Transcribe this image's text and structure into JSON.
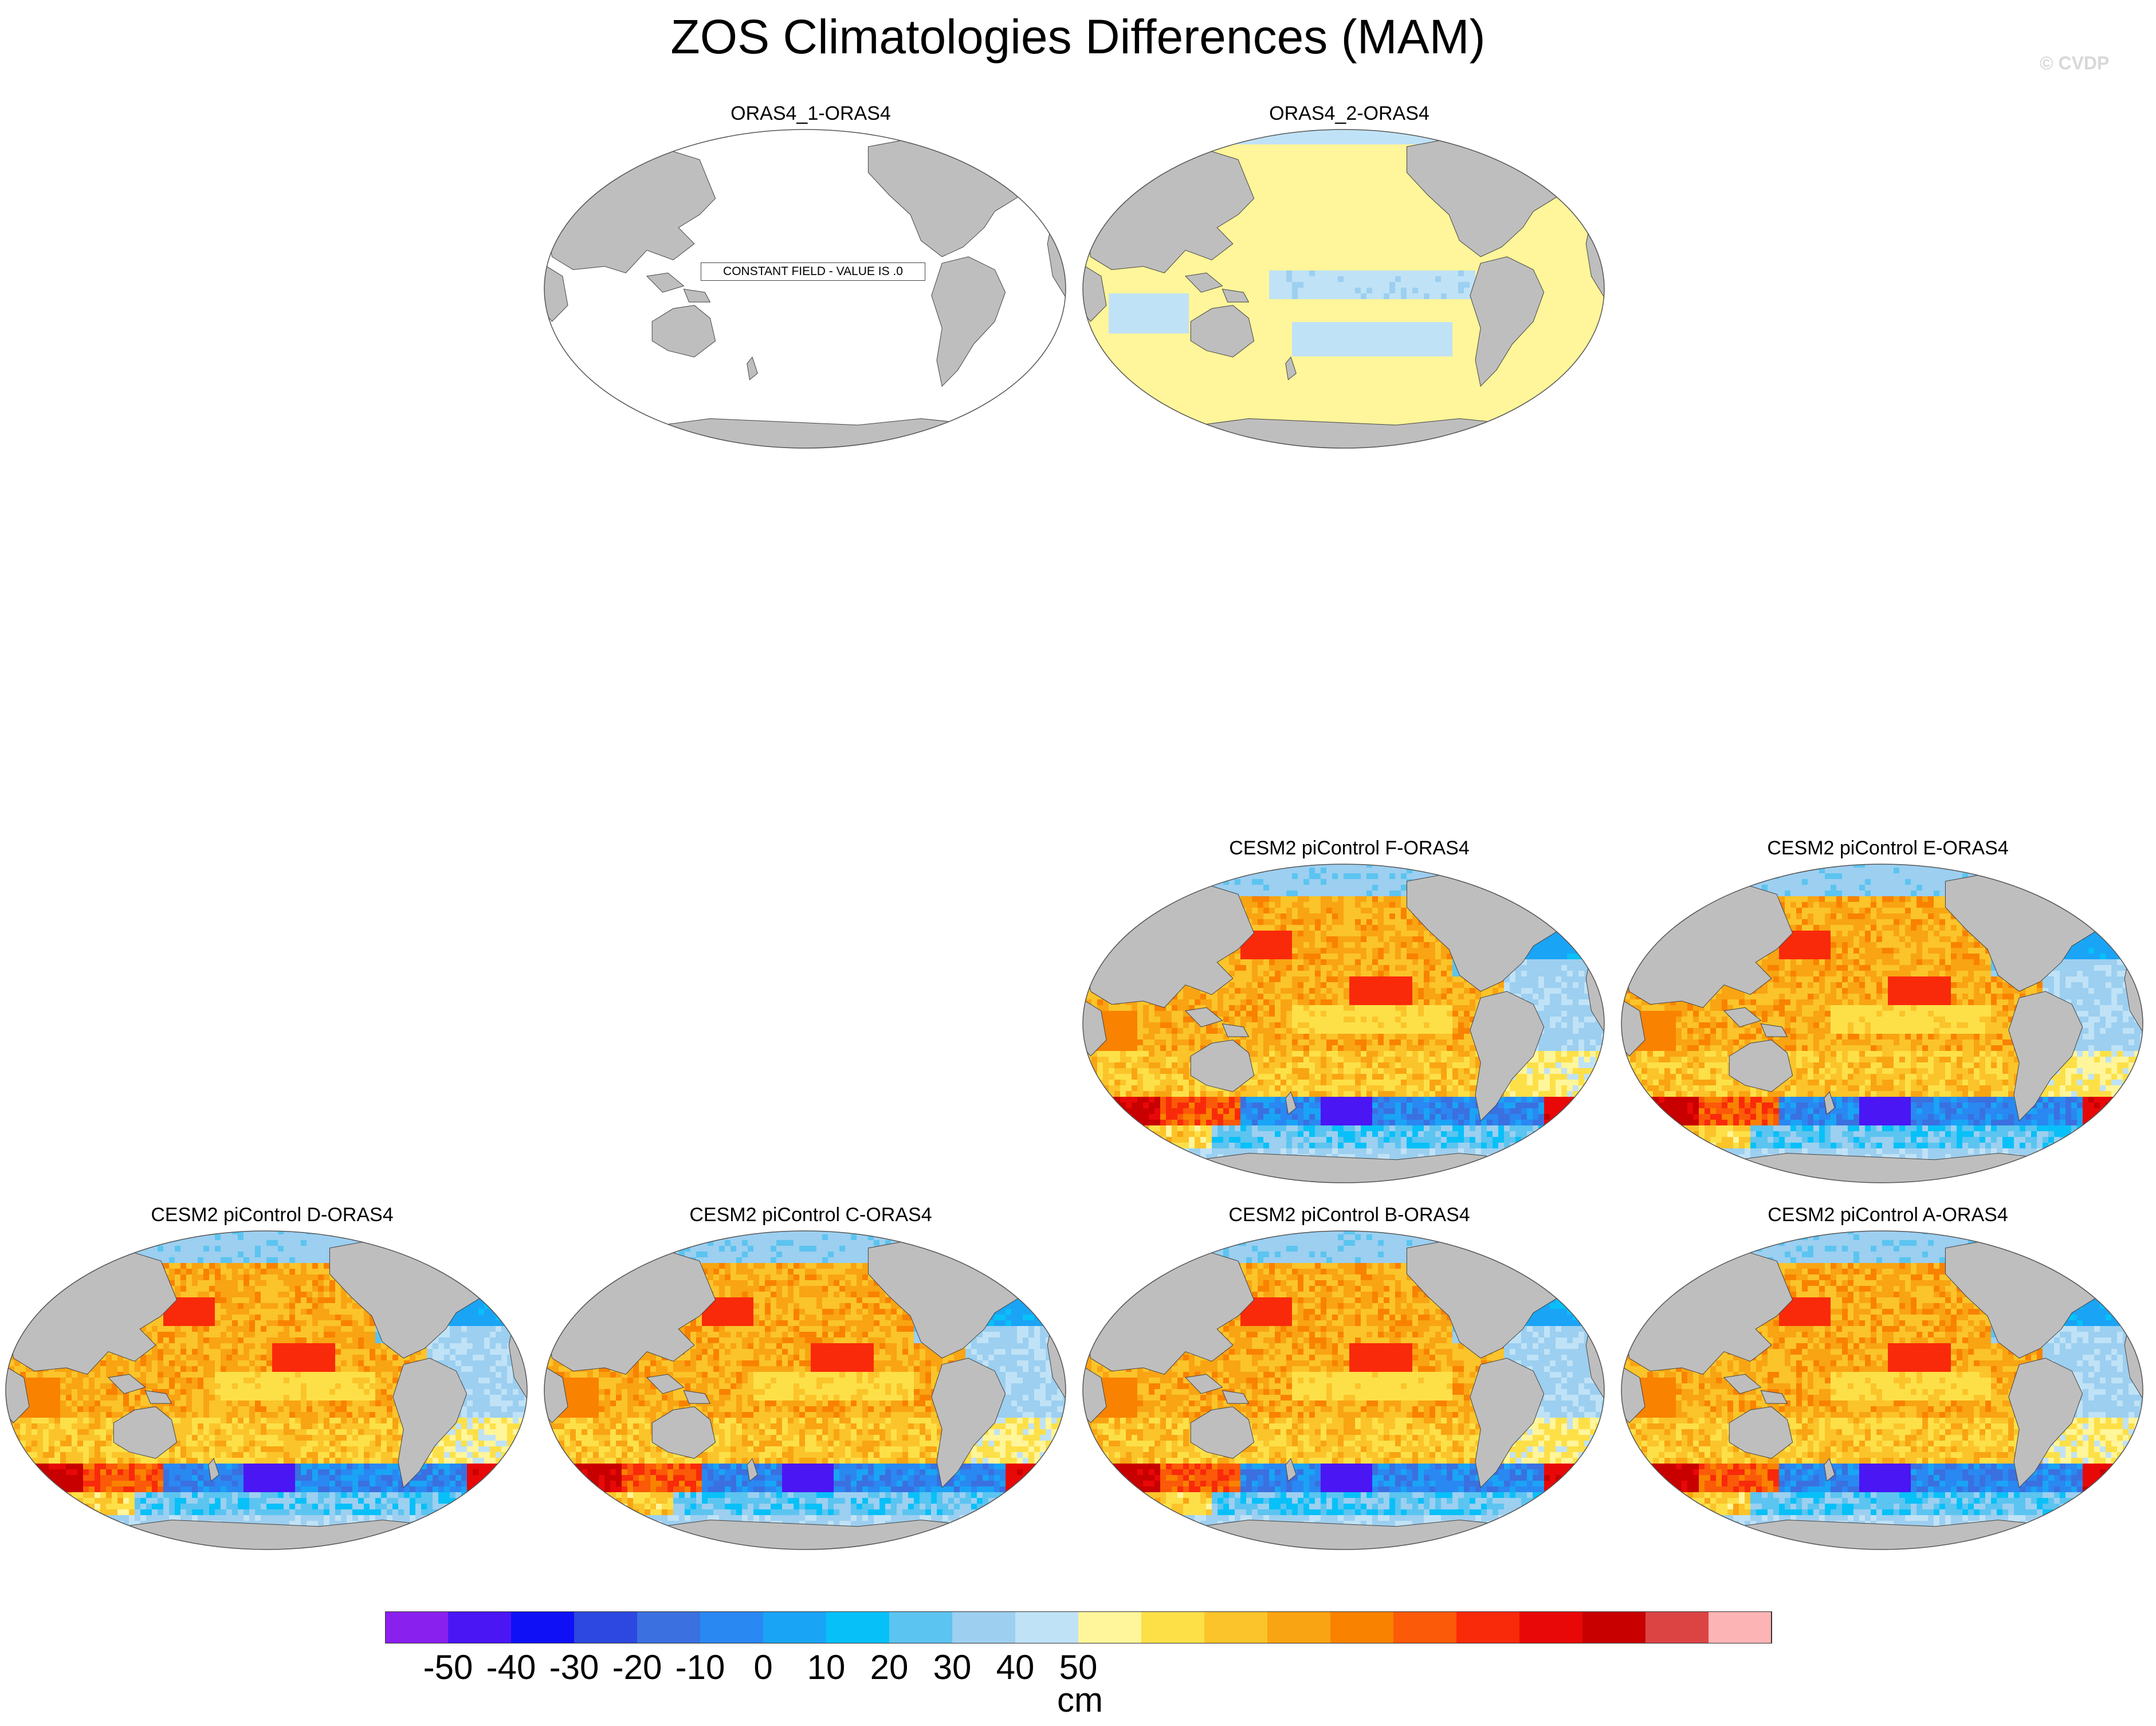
{
  "title": "ZOS Climatologies Differences (MAM)",
  "credit": "© CVDP",
  "panels": [
    {
      "id": "p1",
      "title": "ORAS4_1-ORAS4",
      "style": "constant",
      "note": "CONSTANT FIELD - VALUE IS .0"
    },
    {
      "id": "p2",
      "title": "ORAS4_2-ORAS4",
      "style": "small"
    },
    {
      "id": "p3",
      "title": "CESM2 piControl F-ORAS4",
      "style": "bias"
    },
    {
      "id": "p4",
      "title": "CESM2 piControl E-ORAS4",
      "style": "bias"
    },
    {
      "id": "p5",
      "title": "CESM2 piControl D-ORAS4",
      "style": "bias"
    },
    {
      "id": "p6",
      "title": "CESM2 piControl C-ORAS4",
      "style": "bias"
    },
    {
      "id": "p7",
      "title": "CESM2 piControl B-ORAS4",
      "style": "bias"
    },
    {
      "id": "p8",
      "title": "CESM2 piControl A-ORAS4",
      "style": "bias"
    }
  ],
  "colorbar": {
    "units": "cm",
    "tick_labels": [
      "-50",
      "-40",
      "-30",
      "-20",
      "-10",
      "0",
      "10",
      "20",
      "30",
      "40",
      "50"
    ],
    "colors": [
      "#8a20ee",
      "#4a16f4",
      "#1010f6",
      "#2c48e0",
      "#3a70e0",
      "#2a88f2",
      "#1aa4f6",
      "#08c0f8",
      "#5cc4f0",
      "#9ccff0",
      "#c0e2f6",
      "#fff59a",
      "#fde048",
      "#fbc42a",
      "#f9a412",
      "#f98200",
      "#fb5a08",
      "#f92a0a",
      "#e80808",
      "#c80000",
      "#dc4444",
      "#fcb4b4"
    ]
  },
  "colors": {
    "land": "#bebebe",
    "ocean_zero": "#ffffff",
    "outline": "#555555"
  }
}
